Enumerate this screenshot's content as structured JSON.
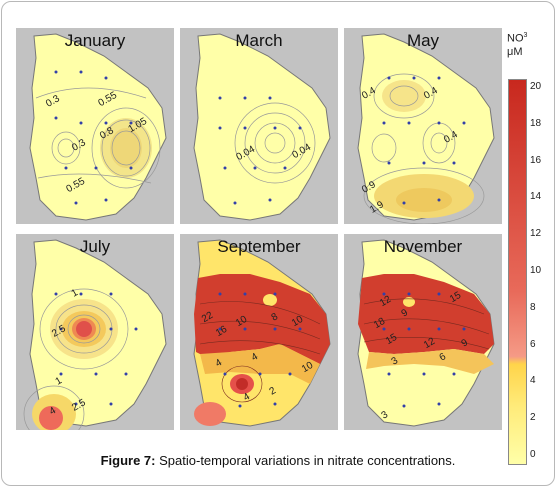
{
  "caption": {
    "label": "Figure 7:",
    "text": "Spatio-temporal variations in nitrate concentrations."
  },
  "legend": {
    "title_line1": "NO",
    "title_sup": "3",
    "title_line2": "μM",
    "ticks": [
      "20",
      "18",
      "16",
      "14",
      "12",
      "10",
      "8",
      "6",
      "4",
      "2",
      "0"
    ],
    "color_low": "#ffffa8",
    "color_mid": "#ffd44a",
    "color_high": "#c8281e"
  },
  "panels": [
    {
      "month": "January",
      "labels": [
        "0.3",
        "0.55",
        "0.8",
        "1.05",
        "0.3",
        "0.55"
      ]
    },
    {
      "month": "March",
      "labels": [
        "0.04",
        "0.04"
      ]
    },
    {
      "month": "May",
      "labels": [
        "0.4",
        "0.4",
        "0.4",
        "0.9",
        "1.9"
      ]
    },
    {
      "month": "July",
      "labels": [
        "1",
        "2.5",
        "1",
        "2.5",
        "4"
      ]
    },
    {
      "month": "September",
      "labels": [
        "22",
        "16",
        "10",
        "8",
        "10",
        "4",
        "4",
        "4",
        "2",
        "10"
      ]
    },
    {
      "month": "November",
      "labels": [
        "12",
        "9",
        "15",
        "18",
        "15",
        "12",
        "9",
        "3",
        "6",
        "3"
      ]
    }
  ]
}
